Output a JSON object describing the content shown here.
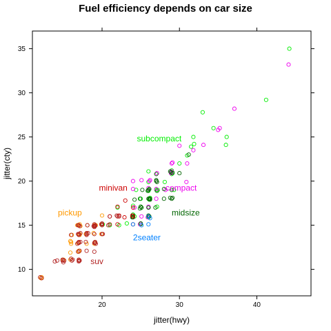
{
  "chart_data": {
    "type": "scatter",
    "title": "Fuel efficiency depends on car size",
    "xlabel": "jitter(hwy)",
    "ylabel": "jitter(cty)",
    "xlim": [
      11,
      47
    ],
    "ylim": [
      7,
      37
    ],
    "xticks": [
      20,
      30,
      40
    ],
    "yticks": [
      10,
      15,
      20,
      25,
      30,
      35
    ],
    "grid": false,
    "legend": "none",
    "marker": "open-circle",
    "series": [
      {
        "name": "subcompact",
        "color": "#00ee00",
        "label_at": [
          24.5,
          24.5
        ],
        "points": [
          [
            44.2,
            35
          ],
          [
            41.2,
            29.2
          ],
          [
            36.1,
            25
          ],
          [
            36.0,
            24.1
          ],
          [
            34.4,
            26
          ],
          [
            33.0,
            27.8
          ],
          [
            31.8,
            25
          ],
          [
            31.9,
            24.2
          ],
          [
            31.5,
            23.9
          ],
          [
            30.0,
            22
          ],
          [
            31.0,
            22.9
          ],
          [
            29.1,
            21
          ],
          [
            29.0,
            21.2
          ],
          [
            26.0,
            21.1
          ],
          [
            28.1,
            19.9
          ],
          [
            27.2,
            19
          ],
          [
            26.1,
            19.1
          ],
          [
            26.0,
            18.9
          ],
          [
            26.2,
            18.1
          ],
          [
            25.0,
            17.1
          ],
          [
            24.0,
            17.2
          ],
          [
            26.1,
            17.9
          ],
          [
            27.0,
            19.0
          ],
          [
            29.0,
            20.8
          ],
          [
            25.1,
            17.0
          ],
          [
            24.0,
            16.2
          ],
          [
            27.1,
            17.1
          ],
          [
            24.2,
            16.0
          ],
          [
            25.0,
            15.1
          ],
          [
            23.2,
            15.2
          ],
          [
            22.2,
            15.0
          ],
          [
            26.0,
            15.9
          ],
          [
            21.0,
            15.0
          ],
          [
            20.1,
            15.1
          ],
          [
            29.3,
            19.0
          ],
          [
            28.9,
            21.0
          ],
          [
            24.4,
            19.0
          ],
          [
            26.0,
            19.9
          ],
          [
            22.0,
            17.0
          ],
          [
            25.0,
            18.0
          ]
        ]
      },
      {
        "name": "compact",
        "color": "#ee00ee",
        "label_at": [
          28.2,
          18.9
        ],
        "points": [
          [
            44.1,
            33.2
          ],
          [
            37.1,
            28.2
          ],
          [
            35.2,
            26.0
          ],
          [
            35.0,
            25.8
          ],
          [
            33.1,
            24.1
          ],
          [
            30.0,
            24.0
          ],
          [
            31.8,
            23.5
          ],
          [
            29.1,
            22.1
          ],
          [
            29.0,
            22.0
          ],
          [
            31.0,
            22.0
          ],
          [
            28.9,
            21.0
          ],
          [
            28.9,
            20.9
          ],
          [
            29.0,
            21.1
          ],
          [
            27.1,
            20.9
          ],
          [
            26.1,
            20.0
          ],
          [
            25.1,
            20.1
          ],
          [
            24.0,
            20.0
          ],
          [
            26.2,
            20.1
          ],
          [
            27.0,
            19.1
          ],
          [
            26.0,
            19.2
          ],
          [
            24.0,
            19.1
          ],
          [
            27.0,
            18.0
          ],
          [
            24.2,
            17.0
          ],
          [
            26.0,
            17.1
          ],
          [
            25.9,
            15.9
          ],
          [
            25.1,
            16.0
          ],
          [
            24.9,
            15.1
          ],
          [
            25.0,
            15.2
          ],
          [
            30.9,
            19.9
          ],
          [
            28.2,
            19.0
          ]
        ]
      },
      {
        "name": "midsize",
        "color": "#006400",
        "label_at": [
          29.0,
          16.1
        ],
        "points": [
          [
            31.2,
            23.0
          ],
          [
            29.1,
            20.9
          ],
          [
            28.9,
            21.0
          ],
          [
            28.8,
            21.1
          ],
          [
            27.0,
            20.1
          ],
          [
            27.1,
            19.9
          ],
          [
            26.0,
            19.0
          ],
          [
            26.1,
            19.1
          ],
          [
            25.9,
            18.9
          ],
          [
            26.0,
            19.0
          ],
          [
            28.0,
            19.1
          ],
          [
            27.1,
            18.9
          ],
          [
            26.1,
            18.0
          ],
          [
            26.2,
            17.9
          ],
          [
            26.0,
            18.0
          ],
          [
            25.0,
            17.1
          ],
          [
            24.9,
            16.9
          ],
          [
            25.1,
            17.0
          ],
          [
            26.9,
            17.0
          ],
          [
            26.0,
            17.0
          ],
          [
            28.8,
            18.1
          ],
          [
            29.0,
            18.0
          ],
          [
            24.0,
            15.9
          ],
          [
            26.0,
            16.1
          ],
          [
            24.0,
            16.1
          ],
          [
            26.1,
            16.0
          ],
          [
            25.0,
            15.2
          ],
          [
            24.9,
            18.0
          ],
          [
            26.2,
            18.0
          ],
          [
            28.0,
            18.0
          ],
          [
            30.0,
            20.9
          ],
          [
            25.2,
            19.0
          ],
          [
            27.0,
            20.0
          ],
          [
            24.2,
            17.9
          ],
          [
            26.0,
            17.0
          ],
          [
            29.0,
            19.0
          ],
          [
            27.0,
            20.8
          ],
          [
            23.9,
            15.9
          ],
          [
            26.0,
            16.0
          ],
          [
            29.1,
            18.1
          ]
        ]
      },
      {
        "name": "minivan",
        "color": "#cc0000",
        "label_at": [
          19.6,
          18.9
        ],
        "points": [
          [
            24.0,
            17.0
          ],
          [
            23.9,
            16.1
          ],
          [
            24.0,
            16.0
          ],
          [
            22.9,
            15.9
          ],
          [
            22.0,
            15.1
          ],
          [
            21.0,
            16.0
          ],
          [
            22.2,
            16.1
          ],
          [
            23.0,
            17.8
          ],
          [
            22.0,
            17.1
          ],
          [
            17.0,
            15.0
          ],
          [
            24.0,
            15.1
          ]
        ]
      },
      {
        "name": "pickup",
        "color": "#ff9900",
        "label_at": [
          14.3,
          16.1
        ],
        "points": [
          [
            17.0,
            15.0
          ],
          [
            19.9,
            15.1
          ],
          [
            20.0,
            16.1
          ],
          [
            18.0,
            14.1
          ],
          [
            17.1,
            13.9
          ],
          [
            16.9,
            13.0
          ],
          [
            15.9,
            13.2
          ],
          [
            16.0,
            12.9
          ],
          [
            17.0,
            12.0
          ],
          [
            15.9,
            11.9
          ],
          [
            19.0,
            15.0
          ],
          [
            17.1,
            14.0
          ],
          [
            15.1,
            11.0
          ],
          [
            12.2,
            9.1
          ],
          [
            18.1,
            15.0
          ],
          [
            17.9,
            14.0
          ],
          [
            16.8,
            15.0
          ],
          [
            16.1,
            13.9
          ],
          [
            19.0,
            12.9
          ],
          [
            17.1,
            15.1
          ],
          [
            17.0,
            13.0
          ],
          [
            19.1,
            13.1
          ],
          [
            18.9,
            14.1
          ],
          [
            15.9,
            11.1
          ],
          [
            17.2,
            14.9
          ],
          [
            18.0,
            12.9
          ],
          [
            17.0,
            11.0
          ],
          [
            17.0,
            12.1
          ],
          [
            19.9,
            14.0
          ],
          [
            16.0,
            13.1
          ],
          [
            15.0,
            11.1
          ],
          [
            12.1,
            9.0
          ],
          [
            19.2,
            15.0
          ]
        ]
      },
      {
        "name": "2seater",
        "color": "#0080ff",
        "label_at": [
          24.0,
          13.3
        ],
        "points": [
          [
            26.0,
            16.0
          ],
          [
            25.1,
            15.0
          ],
          [
            26.2,
            15.8
          ],
          [
            26.0,
            15.1
          ],
          [
            24.0,
            15.1
          ]
        ]
      },
      {
        "name": "suv",
        "color": "#b22222",
        "label_at": [
          18.5,
          10.6
        ],
        "points": [
          [
            17.0,
            14.0
          ],
          [
            17.0,
            13.0
          ],
          [
            16.8,
            12.9
          ],
          [
            17.2,
            13.1
          ],
          [
            19.0,
            15.1
          ],
          [
            18.9,
            14.9
          ],
          [
            19.1,
            13.0
          ],
          [
            19.2,
            12.9
          ],
          [
            20.0,
            14.0
          ],
          [
            19.9,
            15.1
          ],
          [
            17.0,
            11.0
          ],
          [
            16.1,
            11.0
          ],
          [
            15.1,
            11.0
          ],
          [
            15.0,
            10.8
          ],
          [
            14.2,
            11.0
          ],
          [
            14.9,
            11.1
          ],
          [
            17.1,
            11.0
          ],
          [
            17.0,
            15.0
          ],
          [
            18.0,
            14.0
          ],
          [
            19.0,
            14.9
          ],
          [
            17.0,
            13.9
          ],
          [
            16.9,
            14.0
          ],
          [
            20.0,
            15.1
          ],
          [
            19.1,
            13.1
          ],
          [
            18.0,
            12.1
          ],
          [
            18.1,
            15.0
          ],
          [
            18.0,
            14.1
          ],
          [
            19.0,
            12.0
          ],
          [
            12.2,
            9.0
          ],
          [
            12.0,
            9.1
          ],
          [
            14.9,
            11.0
          ],
          [
            13.9,
            10.9
          ],
          [
            17.1,
            14.9
          ],
          [
            17.2,
            14.1
          ],
          [
            16.0,
            13.9
          ],
          [
            20.1,
            14.0
          ],
          [
            19.0,
            14.8
          ],
          [
            18.0,
            13.9
          ],
          [
            17.1,
            12.1
          ],
          [
            16.2,
            11.1
          ],
          [
            17.0,
            13.1
          ],
          [
            19.1,
            14.9
          ],
          [
            15.1,
            11.0
          ],
          [
            17.0,
            13.0
          ],
          [
            19.0,
            14.0
          ],
          [
            16.9,
            12.0
          ],
          [
            18.2,
            14.1
          ],
          [
            20.0,
            15.2
          ],
          [
            19.1,
            15.0
          ],
          [
            17.0,
            11.1
          ],
          [
            22.2,
            16.0
          ],
          [
            21.9,
            16.1
          ],
          [
            21.0,
            16.0
          ],
          [
            20.8,
            15.0
          ],
          [
            19.0,
            13.0
          ],
          [
            17.9,
            13.1
          ],
          [
            21.0,
            15.1
          ],
          [
            20.0,
            15.0
          ],
          [
            16.0,
            11.2
          ],
          [
            17.0,
            10.9
          ],
          [
            16.9,
            15.0
          ],
          [
            22.0,
            16.0
          ]
        ]
      }
    ]
  }
}
